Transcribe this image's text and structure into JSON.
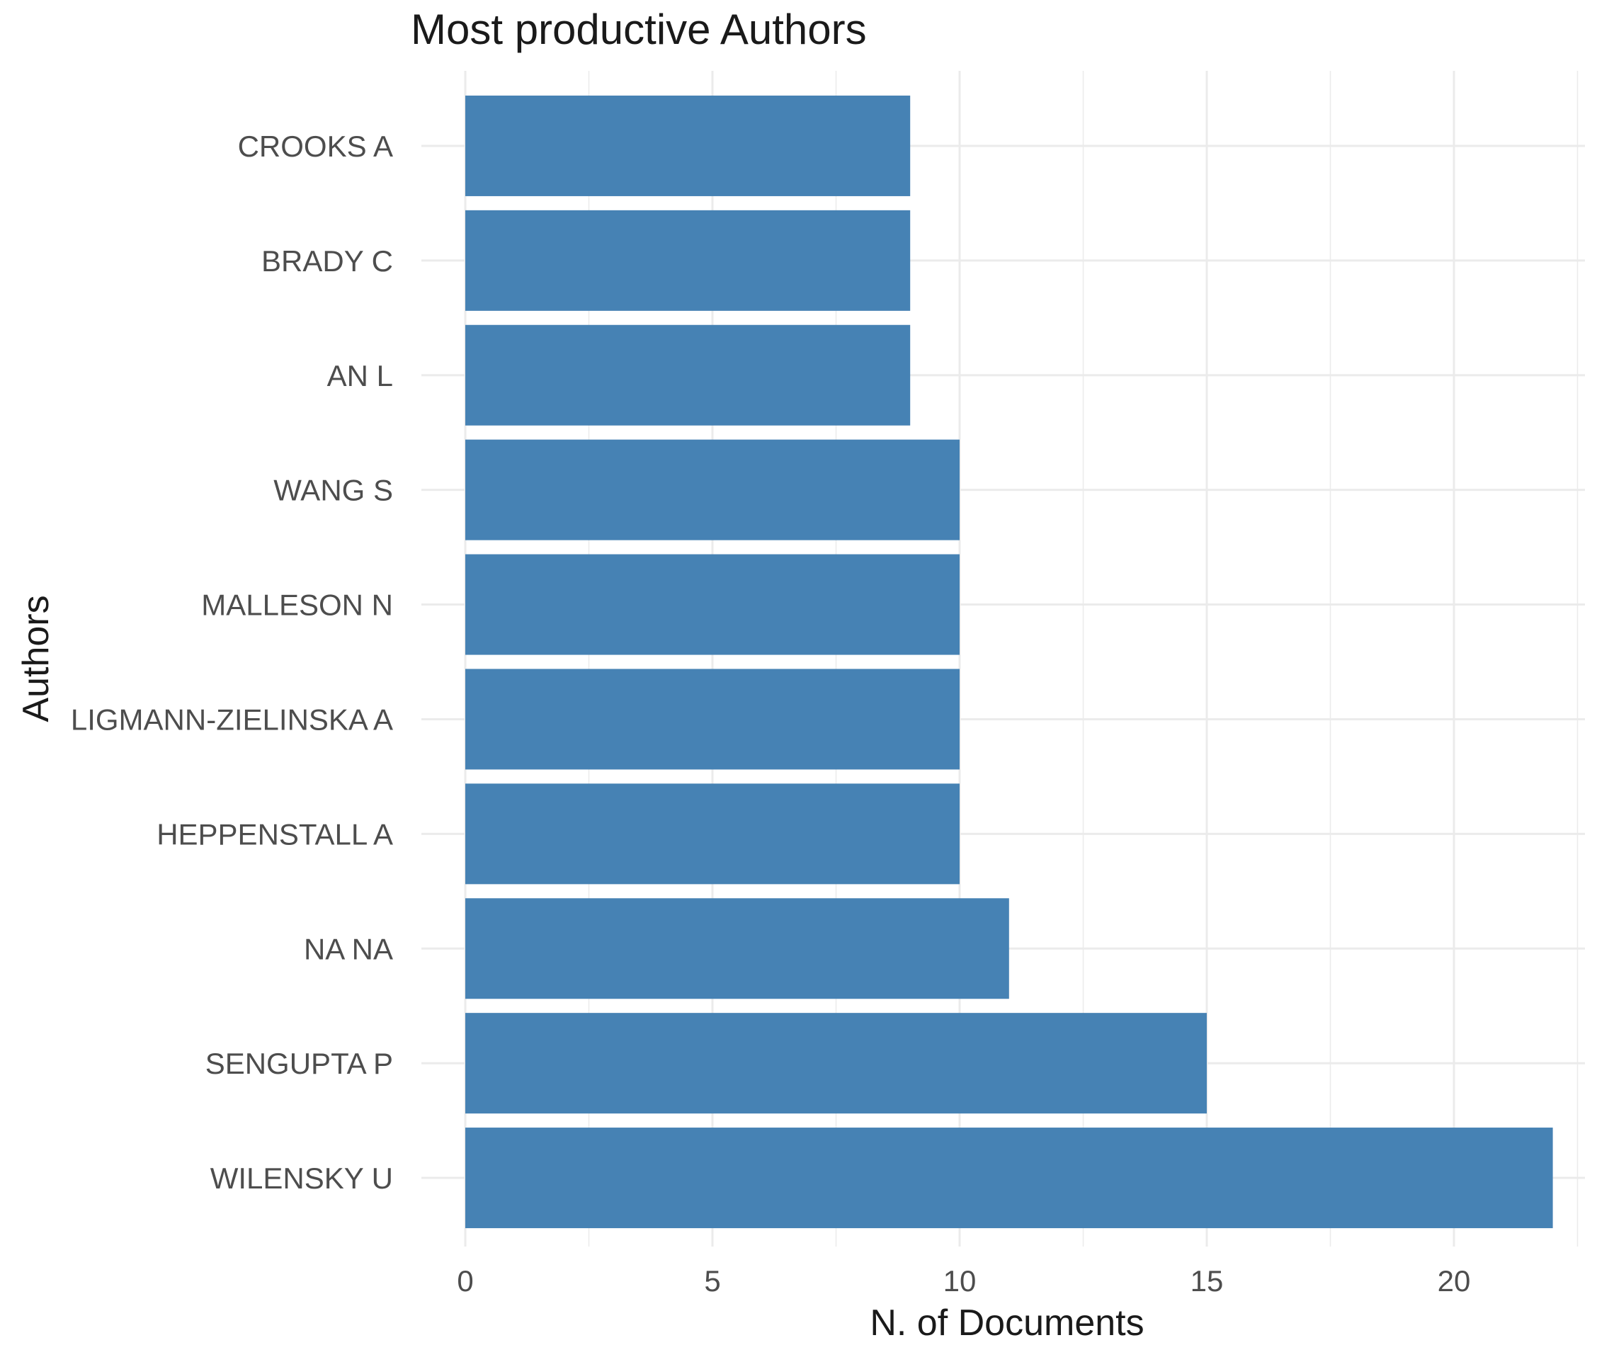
{
  "chart_data": {
    "type": "bar",
    "orientation": "horizontal",
    "title": "Most productive Authors",
    "xlabel": "N. of Documents",
    "ylabel": "Authors",
    "categories": [
      "CROOKS A",
      "BRADY C",
      "AN L",
      "WANG S",
      "MALLESON N",
      "LIGMANN-ZIELINSKA A",
      "HEPPENSTALL A",
      "NA NA",
      "SENGUPTA P",
      "WILENSKY U"
    ],
    "values": [
      9,
      9,
      9,
      10,
      10,
      10,
      10,
      11,
      15,
      22
    ],
    "xlim": [
      0,
      22
    ],
    "x_ticks": [
      0,
      5,
      10,
      15,
      20
    ],
    "x_minor_ticks": [
      2.5,
      7.5,
      12.5,
      17.5,
      22.5
    ],
    "bar_color": "#4682b4",
    "grid": true,
    "legend": "none"
  }
}
